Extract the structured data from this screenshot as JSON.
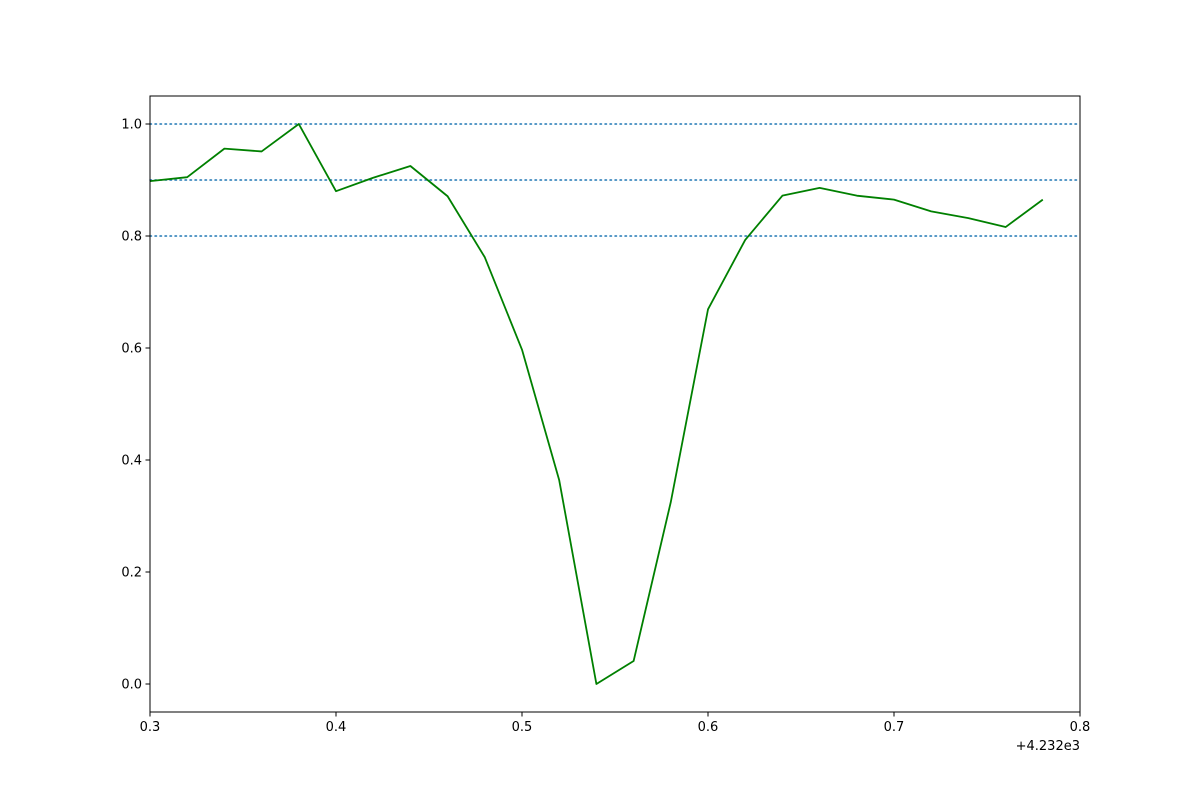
{
  "chart_data": {
    "type": "line",
    "title": "",
    "xlabel": "",
    "ylabel": "",
    "x_offset_label": "+4.232e3",
    "xlim": [
      4232.3,
      4232.8
    ],
    "ylim": [
      -0.05,
      1.05
    ],
    "x_ticks": [
      4232.3,
      4232.4,
      4232.5,
      4232.6,
      4232.7,
      4232.8
    ],
    "x_tick_labels": [
      "0.3",
      "0.4",
      "0.5",
      "0.6",
      "0.7",
      "0.8"
    ],
    "y_ticks": [
      0.0,
      0.2,
      0.4,
      0.6,
      0.8,
      1.0
    ],
    "y_tick_labels": [
      "0.0",
      "0.2",
      "0.4",
      "0.6",
      "0.8",
      "1.0"
    ],
    "grid": false,
    "reference_lines": {
      "orientation": "horizontal",
      "style": "dotted",
      "color": "#1f77b4",
      "values": [
        0.8,
        0.9,
        1.0
      ]
    },
    "series": [
      {
        "color": "#008000",
        "x": [
          4232.3,
          4232.32,
          4232.34,
          4232.36,
          4232.38,
          4232.4,
          4232.42,
          4232.44,
          4232.46,
          4232.48,
          4232.5,
          4232.52,
          4232.54,
          4232.56,
          4232.58,
          4232.6,
          4232.62,
          4232.64,
          4232.66,
          4232.68,
          4232.7,
          4232.72,
          4232.74,
          4232.76,
          4232.78
        ],
        "y": [
          0.898,
          0.905,
          0.956,
          0.951,
          1.0,
          0.88,
          0.904,
          0.925,
          0.871,
          0.762,
          0.597,
          0.364,
          0.0,
          0.041,
          0.325,
          0.669,
          0.793,
          0.872,
          0.886,
          0.872,
          0.865,
          0.844,
          0.832,
          0.816,
          0.865
        ]
      }
    ]
  }
}
